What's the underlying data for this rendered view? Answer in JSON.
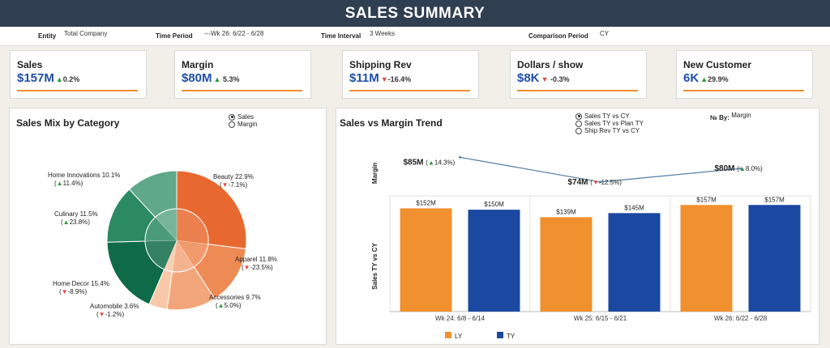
{
  "header": {
    "title": "SALES SUMMARY"
  },
  "filters": [
    {
      "label": "Entity",
      "value": "Total Company"
    },
    {
      "label": "Time Period",
      "value": "---Wk 26: 6/22 - 6/28"
    },
    {
      "label": "Time Interval",
      "value": "3 Weeks"
    },
    {
      "label": "Comparison Period",
      "value": "CY"
    }
  ],
  "kpis": [
    {
      "title": "Sales",
      "value": "$157M",
      "dir": "up",
      "delta": "0.2%"
    },
    {
      "title": "Margin",
      "value": "$80M",
      "dir": "up",
      "delta": "5.3%"
    },
    {
      "title": "Shipping Rev",
      "value": "$11M",
      "dir": "down",
      "delta": "-16.4%"
    },
    {
      "title": "Dollars / show",
      "value": "$8K",
      "dir": "down",
      "delta": "-0.3%"
    },
    {
      "title": "New Customer",
      "value": "6K",
      "dir": "up",
      "delta": "29.9%"
    }
  ],
  "mix": {
    "title": "Sales Mix by Category",
    "options": [
      "Sales",
      "Margin"
    ],
    "selected": 0
  },
  "trend": {
    "title": "Sales vs Margin Trend",
    "options": [
      "Sales TY vs CY",
      "Sales TY vs Plan TY",
      "Ship Rev TY vs CY"
    ],
    "selected": 0,
    "by_label": "№ By:",
    "by_value": "Margin",
    "margin_axis": "Margin",
    "sales_axis": "Sales TY vs CY"
  },
  "chart_data": [
    {
      "type": "pie",
      "title": "Sales Mix by Category",
      "slices": [
        {
          "name": "Beauty",
          "share": "22.9%",
          "value": 22.9,
          "dir": "down",
          "delta": "-7.1%",
          "color": "#e8692f"
        },
        {
          "name": "Apparel",
          "share": "11.8%",
          "value": 11.8,
          "dir": "down",
          "delta": "-23.5%",
          "color": "#ee8a54"
        },
        {
          "name": "Accessories",
          "share": "9.7%",
          "value": 9.7,
          "dir": "up",
          "delta": "5.0%",
          "color": "#f3a57a"
        },
        {
          "name": "Automobile",
          "share": "3.6%",
          "value": 3.6,
          "dir": "down",
          "delta": "-1.2%",
          "color": "#f8c8a8"
        },
        {
          "name": "Home Decor",
          "share": "15.4%",
          "value": 15.4,
          "dir": "down",
          "delta": "-8.9%",
          "color": "#0f6b47"
        },
        {
          "name": "Culinary",
          "share": "11.5%",
          "value": 11.5,
          "dir": "up",
          "delta": "23.8%",
          "color": "#2c8a63"
        },
        {
          "name": "Home Innovations",
          "share": "10.1%",
          "value": 10.1,
          "dir": "up",
          "delta": "11.4%",
          "color": "#5fa88a"
        }
      ]
    },
    {
      "type": "line",
      "title": "Margin",
      "categories": [
        "Wk 24: 6/8 - 6/14",
        "Wk 25: 6/15 - 6/21",
        "Wk 26: 6/22 - 6/28"
      ],
      "values": [
        85,
        74,
        80
      ],
      "labels": [
        "$85M",
        "$74M",
        "$80M"
      ],
      "dirs": [
        "up",
        "down",
        "up"
      ],
      "deltas": [
        "14.3%",
        "-12.5%",
        "8.0%"
      ],
      "color": "#5b84a8"
    },
    {
      "type": "bar",
      "categories": [
        "Wk 24: 6/8 - 6/14",
        "Wk 25: 6/15 - 6/21",
        "Wk 26: 6/22 - 6/28"
      ],
      "ylabel": "Sales TY vs CY",
      "ylim": [
        0,
        160
      ],
      "series": [
        {
          "name": "LY",
          "color": "#f0902e",
          "values": [
            152,
            139,
            157
          ],
          "labels": [
            "$152M",
            "$139M",
            "$157M"
          ]
        },
        {
          "name": "TY",
          "color": "#1b48a0",
          "values": [
            150,
            145,
            157
          ],
          "labels": [
            "$150M",
            "$145M",
            "$157M"
          ]
        }
      ]
    }
  ]
}
